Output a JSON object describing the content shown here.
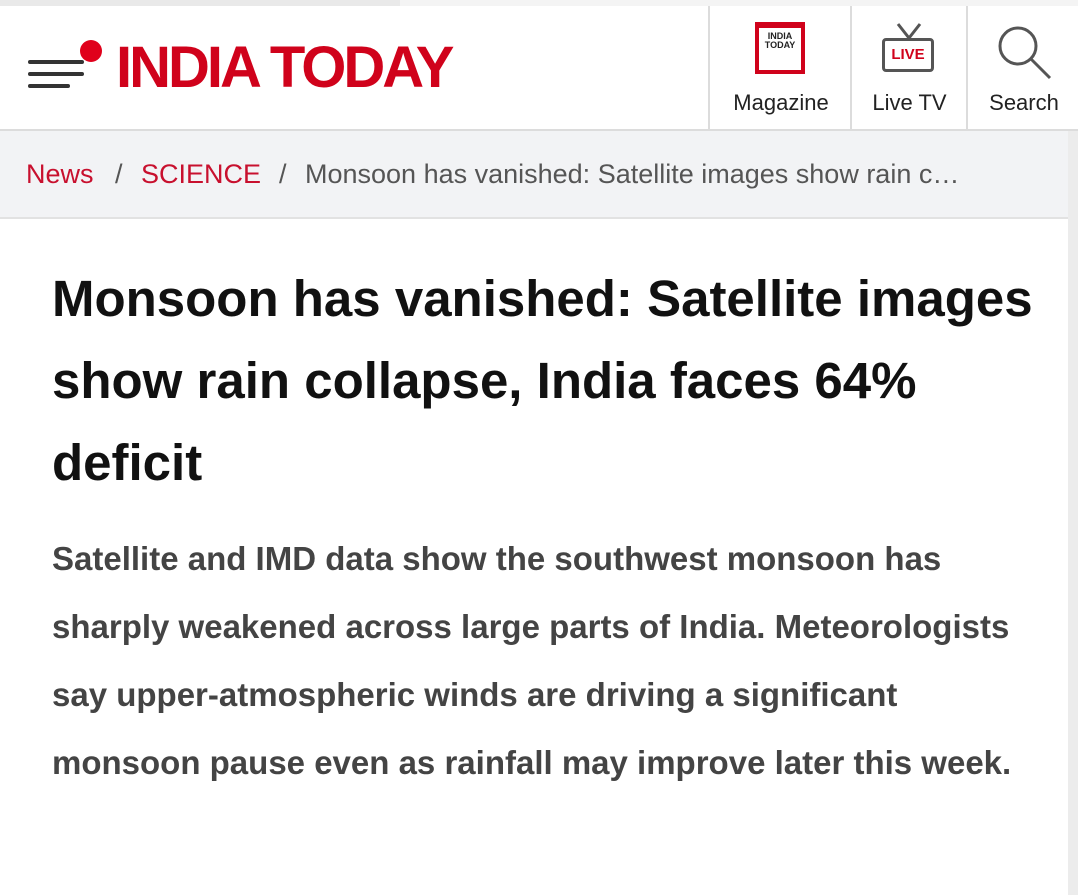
{
  "header": {
    "logo": "INDIA TODAY",
    "nav": [
      {
        "icon_text": "INDIA TODAY",
        "label": "Magazine"
      },
      {
        "icon_text": "LIVE",
        "label": "Live TV"
      },
      {
        "label": "Search"
      }
    ]
  },
  "breadcrumb": {
    "separator": "/",
    "items": [
      "News",
      "SCIENCE",
      "Monsoon has vanished: Satellite images show rain c…"
    ]
  },
  "article": {
    "headline": "Monsoon has vanished: Satellite images show rain collapse, India faces 64% deficit",
    "summary": "Satellite and IMD data show the southwest monsoon has sharply weakened across large parts of India. Meteorologists say upper-atmospheric winds are driving a significant monsoon pause even as rainfall may improve later this week."
  }
}
